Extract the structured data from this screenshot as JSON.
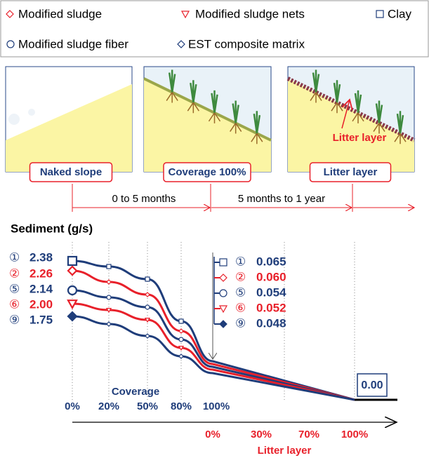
{
  "legend": [
    "Modified sludge",
    "Modified sludge nets",
    "Clay",
    "Modified sludge fiber",
    "EST composite matrix"
  ],
  "panels": [
    "Naked slope",
    "Coverage 100%",
    "Litter layer"
  ],
  "litter_annotation": "Litter layer",
  "timeline": [
    "0 to 5 months",
    "5 months to 1 year"
  ],
  "chart": {
    "title": "Sediment (g/s)",
    "series": [
      {
        "index": "①",
        "start": "2.38",
        "end": "0.065"
      },
      {
        "index": "②",
        "start": "2.26",
        "end": "0.060"
      },
      {
        "index": "⑤",
        "start": "2.14",
        "end": "0.054"
      },
      {
        "index": "⑥",
        "start": "2.00",
        "end": "0.052"
      },
      {
        "index": "⑨",
        "start": "1.75",
        "end": "0.048"
      }
    ],
    "coverage_label": "Coverage",
    "coverage_ticks": [
      "0%",
      "20%",
      "50%",
      "80%",
      "100%"
    ],
    "litter_label": "Litter layer",
    "litter_ticks": [
      "0%",
      "30%",
      "70%",
      "100%"
    ],
    "final_value": "0.00"
  }
}
